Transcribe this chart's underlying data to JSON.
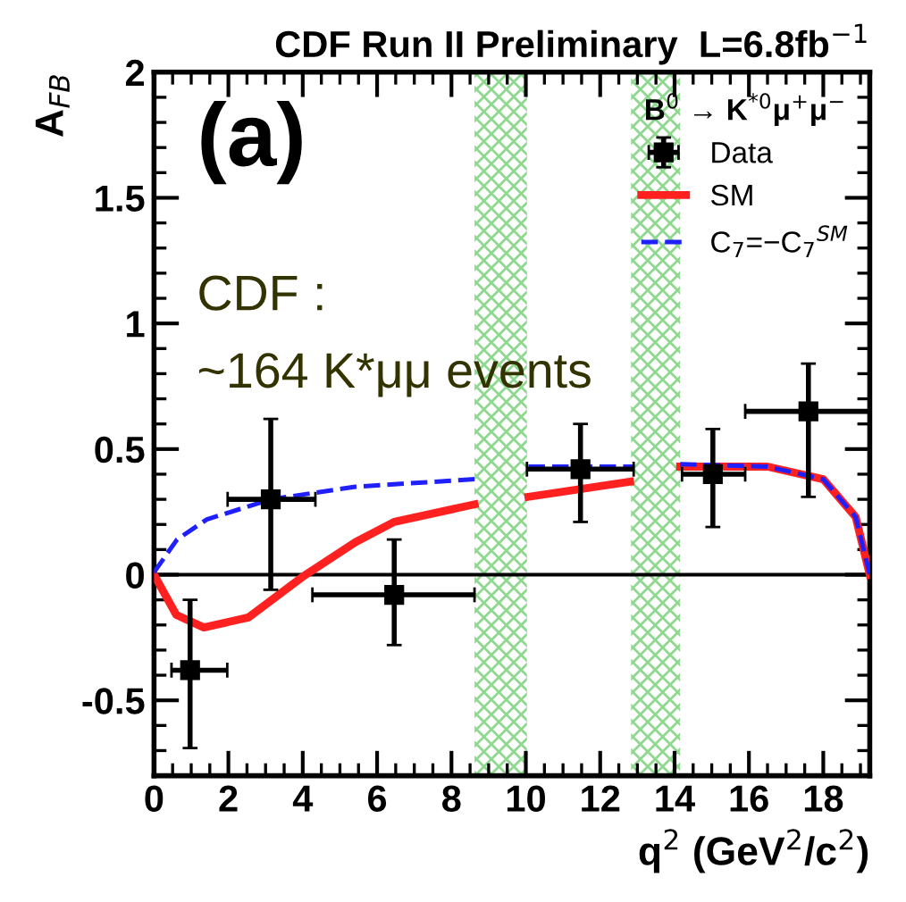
{
  "chart_data": {
    "type": "scatter",
    "title": "CDF Run II Preliminary  L=6.8fb$^{−1}$",
    "xlabel": "q$^{2}$ (GeV$^{2}$/c$^{2}$)",
    "ylabel": "A$_{FB}$",
    "legend_title": "B$^{0}$ → K$^{*0}$μ$^{+}$μ$^{−}$",
    "annotations": [
      "(a)",
      "CDF :",
      "~164 K*μμ events"
    ],
    "xlim": [
      0,
      19.25
    ],
    "ylim": [
      -0.8,
      2
    ],
    "xticks": [
      0,
      2,
      4,
      6,
      8,
      10,
      12,
      14,
      16,
      18
    ],
    "yticks": [
      -0.5,
      0,
      0.5,
      1,
      1.5,
      2
    ],
    "grid": false,
    "legend": "top right",
    "ref_lines": [
      {
        "axis": "y",
        "value": 0,
        "color": "#000000",
        "line_style": "solid"
      }
    ],
    "bands": [
      {
        "axis": "x",
        "from": 8.62,
        "to": 10.03,
        "color": "#8fd88f"
      },
      {
        "axis": "x",
        "from": 12.83,
        "to": 14.15,
        "color": "#8fd88f"
      }
    ],
    "series": [
      {
        "name": "Data",
        "color": "#000000",
        "marker": "square",
        "x": [
          0.97,
          3.14,
          6.46,
          11.47,
          15.03,
          17.6
        ],
        "values": [
          -0.38,
          0.3,
          -0.08,
          0.42,
          0.4,
          0.65
        ],
        "errors": [
          [
            -0.69,
            -0.1
          ],
          [
            -0.06,
            0.62
          ],
          [
            -0.28,
            0.14
          ],
          [
            0.21,
            0.6
          ],
          [
            0.19,
            0.58
          ],
          [
            0.31,
            0.84
          ]
        ],
        "xerrors": [
          [
            0.47,
            1.97
          ],
          [
            1.98,
            4.34
          ],
          [
            4.26,
            8.62
          ],
          [
            10.03,
            12.9
          ],
          [
            14.2,
            15.9
          ],
          [
            15.9,
            19.25
          ]
        ]
      },
      {
        "name": "SM",
        "type": "line",
        "color": "#ff2020",
        "line_style": "solid",
        "x": [
          0,
          0.6,
          1.34,
          2.54,
          3.98,
          5.42,
          6.46,
          8.62,
          9.3,
          10.07,
          12.8,
          13.5,
          14.15,
          16.5,
          18,
          18.87,
          19.25
        ],
        "values": [
          0,
          -0.16,
          -0.21,
          -0.17,
          -0.01,
          0.13,
          0.21,
          0.28,
          null,
          0.31,
          0.37,
          null,
          0.43,
          0.43,
          0.38,
          0.23,
          0
        ]
      },
      {
        "name": "C$_{7}$=−C$_{7}$$^{SM}$",
        "type": "line",
        "color": "#2020ff",
        "line_style": "dashed",
        "x": [
          0,
          0.62,
          1.42,
          3.14,
          5.42,
          8.62,
          9.3,
          10.07,
          12.9,
          13.5,
          14.15,
          16.5,
          18,
          18.87,
          19.25
        ],
        "values": [
          0.01,
          0.14,
          0.22,
          0.3,
          0.35,
          0.38,
          null,
          0.43,
          0.43,
          null,
          0.44,
          0.43,
          0.38,
          0.23,
          0
        ]
      }
    ]
  }
}
